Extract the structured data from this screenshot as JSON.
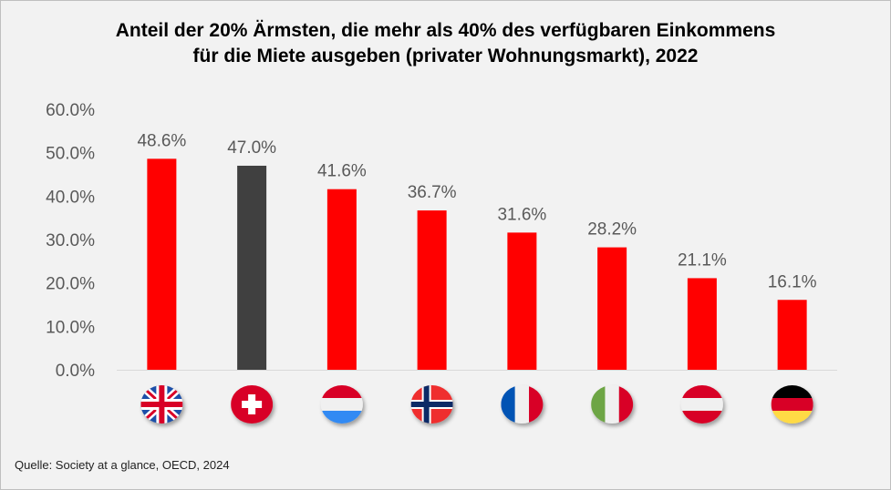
{
  "chart_data": {
    "type": "bar",
    "title": [
      "Anteil der 20% Ärmsten, die mehr als 40% des verfügbaren Einkommens",
      "für die Miete ausgeben (privater Wohnungsmarkt), 2022"
    ],
    "categories": [
      "United Kingdom",
      "Switzerland",
      "Luxembourg",
      "Norway",
      "France",
      "Italy",
      "Austria",
      "Germany"
    ],
    "category_icons": [
      "flag-uk",
      "flag-switzerland",
      "flag-luxembourg",
      "flag-norway",
      "flag-france",
      "flag-italy",
      "flag-austria",
      "flag-germany"
    ],
    "values": [
      48.6,
      47.0,
      41.6,
      36.7,
      31.6,
      28.2,
      21.1,
      16.1
    ],
    "data_labels": [
      "48.6%",
      "47.0%",
      "41.6%",
      "36.7%",
      "31.6%",
      "28.2%",
      "21.1%",
      "16.1%"
    ],
    "bar_colors": [
      "#ff0000",
      "#404040",
      "#ff0000",
      "#ff0000",
      "#ff0000",
      "#ff0000",
      "#ff0000",
      "#ff0000"
    ],
    "ylim": [
      0,
      60
    ],
    "yticks": [
      "0.0%",
      "10.0%",
      "20.0%",
      "30.0%",
      "40.0%",
      "50.0%",
      "60.0%"
    ],
    "xlabel": "",
    "ylabel": "",
    "grid": false
  },
  "source": "Quelle: Society at a glance, OECD, 2024"
}
